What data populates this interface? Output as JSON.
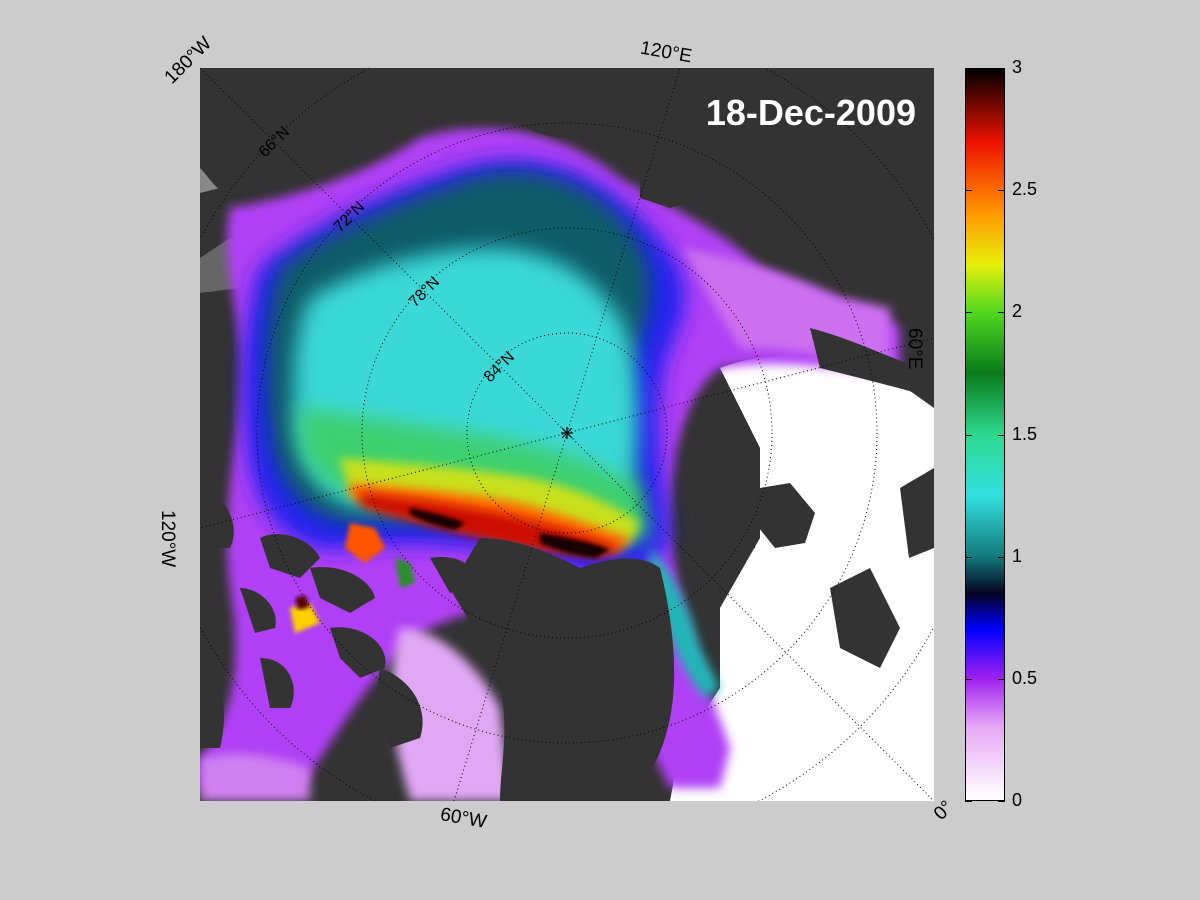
{
  "date_label": "18-Dec-2009",
  "edge_labels": {
    "lon_180w": "180°W",
    "lon_120e": "120°E",
    "lon_60e": "60°E",
    "lon_120w": "120°W",
    "lon_60w": "60°W",
    "lon_0": "0°"
  },
  "lat_labels": [
    "66°N",
    "72°N",
    "78°N",
    "84°N"
  ],
  "colorbar": {
    "min": 0,
    "max": 3,
    "ticks": [
      "0",
      "0.5",
      "1",
      "1.5",
      "2",
      "2.5",
      "3"
    ],
    "stops": [
      {
        "value": 0.0,
        "color": "#ffffff"
      },
      {
        "value": 0.3,
        "color": "#e6a8f5"
      },
      {
        "value": 0.5,
        "color": "#a020f0"
      },
      {
        "value": 0.7,
        "color": "#0000ff"
      },
      {
        "value": 0.85,
        "color": "#050520"
      },
      {
        "value": 1.0,
        "color": "#137a7a"
      },
      {
        "value": 1.25,
        "color": "#33e0e0"
      },
      {
        "value": 1.5,
        "color": "#2ed88e"
      },
      {
        "value": 1.75,
        "color": "#0a7a1a"
      },
      {
        "value": 2.0,
        "color": "#4fd81f"
      },
      {
        "value": 2.2,
        "color": "#e8ef0a"
      },
      {
        "value": 2.4,
        "color": "#ff9a00"
      },
      {
        "value": 2.7,
        "color": "#ee1100"
      },
      {
        "value": 3.0,
        "color": "#000000"
      }
    ]
  },
  "colors": {
    "background": "#cccccc",
    "land": "#333333",
    "open_water": "#ffffff"
  }
}
